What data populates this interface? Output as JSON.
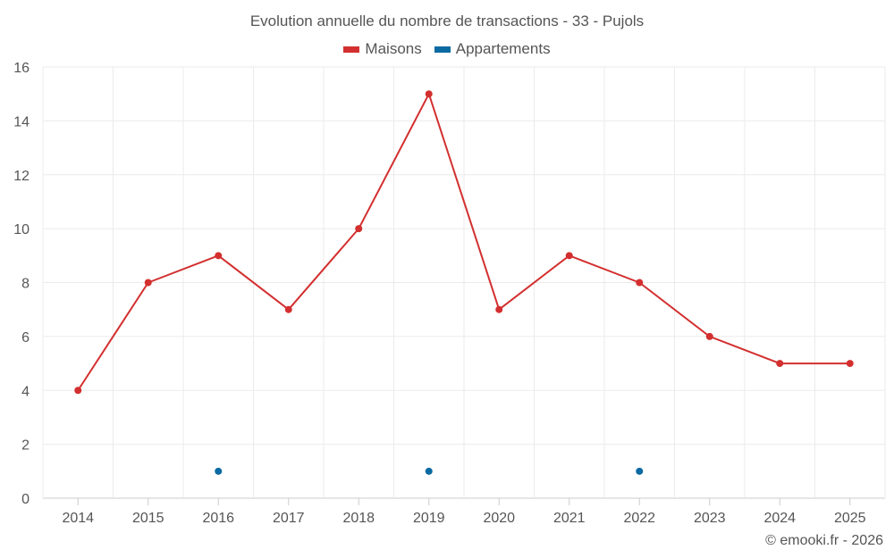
{
  "colors": {
    "maisons": "#d32f2f",
    "appartements": "#0b6aa2",
    "grid": "#ebebeb",
    "axis": "#cccccc"
  },
  "credit": "© emooki.fr - 2026",
  "chart_data": {
    "type": "line",
    "title": "Evolution annuelle du nombre de transactions - 33 - Pujols",
    "xlabel": "",
    "ylabel": "",
    "categories": [
      "2014",
      "2015",
      "2016",
      "2017",
      "2018",
      "2019",
      "2020",
      "2021",
      "2022",
      "2023",
      "2024",
      "2025"
    ],
    "ylim": [
      0,
      16
    ],
    "yticks": [
      "0",
      "2",
      "4",
      "6",
      "8",
      "10",
      "12",
      "14",
      "16"
    ],
    "grid": true,
    "legend_position": "top-center",
    "series": [
      {
        "name": "Maisons",
        "color": "#d32f2f",
        "values": [
          4,
          8,
          9,
          7,
          10,
          15,
          7,
          9,
          8,
          6,
          5,
          5
        ]
      },
      {
        "name": "Appartements",
        "color": "#0b6aa2",
        "values": [
          null,
          null,
          1,
          null,
          null,
          1,
          null,
          null,
          1,
          null,
          null,
          null
        ]
      }
    ]
  }
}
